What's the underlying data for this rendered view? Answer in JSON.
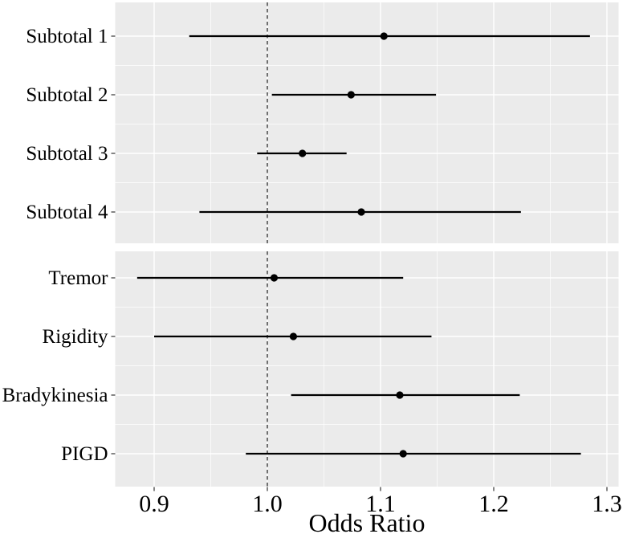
{
  "figure": {
    "background_color": "#ffffff",
    "panel_background_color": "#ebebeb",
    "gridline_color": "#ffffff",
    "data_line_color": "#000000",
    "point_color": "#000000",
    "reference_line_color": "#2b2b2b",
    "tick_color": "#333333",
    "text_color": "#000000"
  },
  "chart_data": {
    "type": "scatter",
    "subtype": "forest-plot",
    "title": "",
    "xlabel": "Odds Ratio",
    "ylabel": "",
    "xlim": [
      0.865,
      1.311
    ],
    "x_ticks": [
      0.9,
      1.0,
      1.1,
      1.2,
      1.3
    ],
    "x_tick_labels": [
      "0.9",
      "1.0",
      "1.1",
      "1.2",
      "1.3"
    ],
    "reference_line_x": 1.0,
    "grid": true,
    "legend": "none",
    "panels": [
      {
        "name": "subtotals",
        "rows": [
          {
            "label": "Subtotal 1",
            "or": 1.103,
            "ci_low": 0.931,
            "ci_high": 1.285
          },
          {
            "label": "Subtotal 2",
            "or": 1.074,
            "ci_low": 1.004,
            "ci_high": 1.149
          },
          {
            "label": "Subtotal 3",
            "or": 1.031,
            "ci_low": 0.991,
            "ci_high": 1.07
          },
          {
            "label": "Subtotal 4",
            "or": 1.083,
            "ci_low": 0.94,
            "ci_high": 1.224
          }
        ]
      },
      {
        "name": "motor-signs",
        "rows": [
          {
            "label": "Tremor",
            "or": 1.006,
            "ci_low": 0.885,
            "ci_high": 1.12
          },
          {
            "label": "Rigidity",
            "or": 1.023,
            "ci_low": 0.9,
            "ci_high": 1.145
          },
          {
            "label": "Bradykinesia",
            "or": 1.117,
            "ci_low": 1.021,
            "ci_high": 1.223
          },
          {
            "label": "PIGD",
            "or": 1.12,
            "ci_low": 0.981,
            "ci_high": 1.277
          }
        ]
      }
    ]
  }
}
